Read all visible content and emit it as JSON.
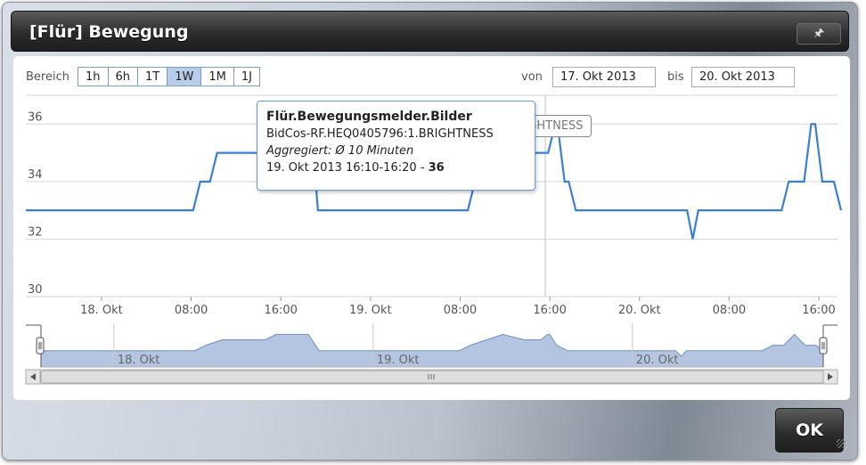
{
  "dialog": {
    "title": "[Flür] Bewegung",
    "pin_icon": "pin-icon",
    "ok_label": "OK"
  },
  "toolbar": {
    "range_label": "Bereich",
    "ranges": [
      "1h",
      "6h",
      "1T",
      "1W",
      "1M",
      "1J"
    ],
    "active_range": "1W",
    "von_label": "von",
    "von_value": "17. Okt 2013",
    "bis_label": "bis",
    "bis_value": "20. Okt 2013"
  },
  "tooltip": {
    "title": "Flür.Bewegungsmelder.Bilder",
    "channel": "BidCos-RF.HEQ0405796:1.BRIGHTNESS",
    "aggregation": "Aggregiert: Ø 10 Minuten",
    "time": "19. Okt 2013 16:10-16:20 - ",
    "value": "36"
  },
  "series_label_fragment": "der.BRIGHTNESS",
  "chart_data": {
    "type": "line",
    "series": [
      {
        "x": [
          "2013-10-17 17:15",
          "2013-10-18 07:30",
          "2013-10-18 08:30",
          "2013-10-18 10:00",
          "2013-10-18 14:00",
          "2013-10-18 15:00",
          "2013-10-18 18:00",
          "2013-10-18 19:00",
          "2013-10-19 08:00",
          "2013-10-19 09:00",
          "2013-10-19 10:30",
          "2013-10-19 12:00",
          "2013-10-19 14:00",
          "2013-10-19 15:30",
          "2013-10-19 16:10",
          "2013-10-19 16:20",
          "2013-10-19 17:00",
          "2013-10-19 18:00",
          "2013-10-20 04:00",
          "2013-10-20 04:30",
          "2013-10-20 05:00",
          "2013-10-20 12:00",
          "2013-10-20 13:00",
          "2013-10-20 14:00",
          "2013-10-20 15:00",
          "2013-10-20 16:00",
          "2013-10-20 17:00",
          "2013-10-20 17:40"
        ],
        "values": [
          33,
          33,
          34,
          35,
          35,
          36,
          36,
          33,
          33,
          34,
          35,
          36,
          35,
          35,
          36,
          36,
          34,
          33,
          33,
          32,
          33,
          33,
          34,
          34,
          36,
          34,
          34,
          33
        ]
      }
    ],
    "ylim": [
      30,
      37
    ],
    "y_ticks": [
      "30",
      "32",
      "34",
      "36"
    ],
    "x_ticks": [
      "18. Okt",
      "08:00",
      "16:00",
      "19. Okt",
      "08:00",
      "16:00",
      "20. Okt",
      "08:00",
      "16:00"
    ],
    "navigator_labels": [
      "18. Okt",
      "19. Okt",
      "20. Okt"
    ],
    "grid": true,
    "color": "#3a7fd0"
  }
}
